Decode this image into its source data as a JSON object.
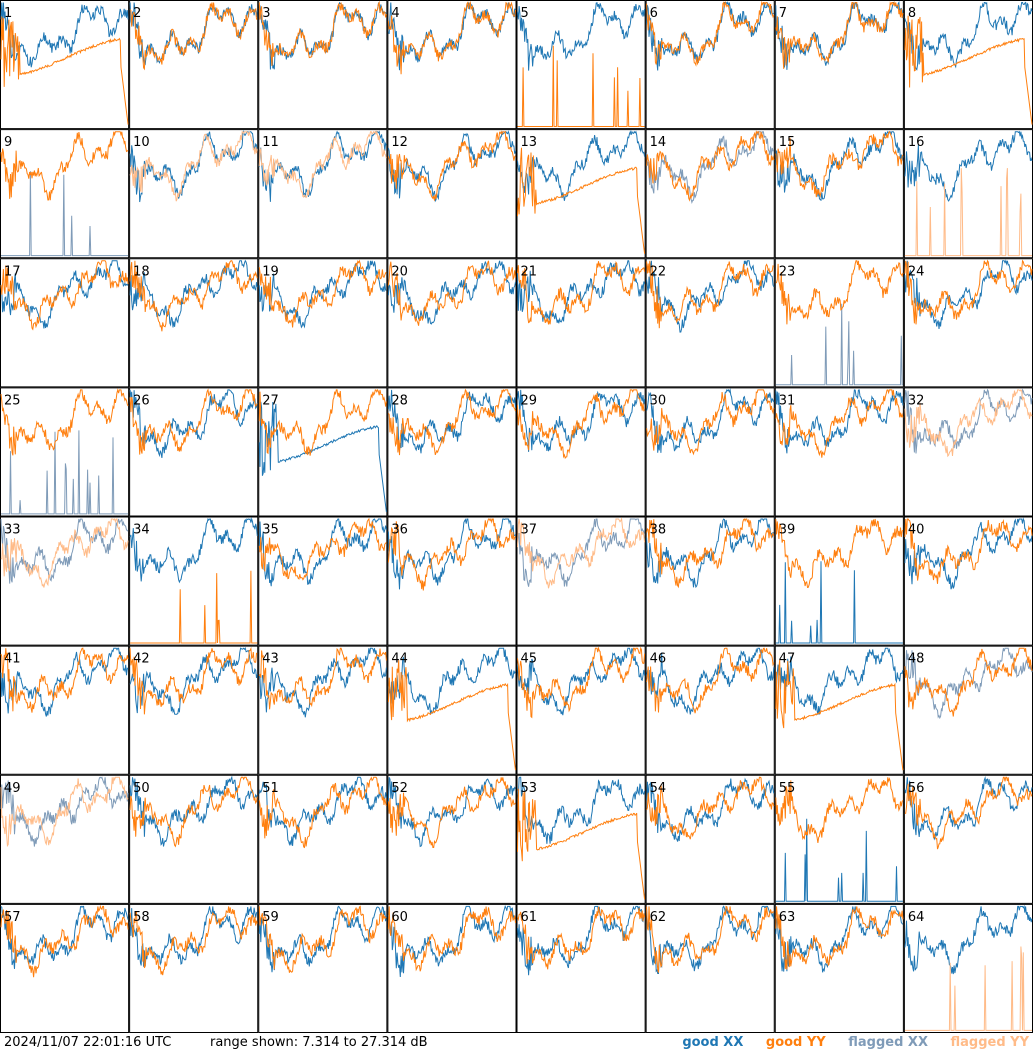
{
  "chart_data": {
    "type": "line",
    "panel_labels": [
      "1",
      "2",
      "3",
      "4",
      "5",
      "6",
      "7",
      "8",
      "9",
      "10",
      "11",
      "12",
      "13",
      "14",
      "15",
      "16",
      "17",
      "18",
      "19",
      "20",
      "21",
      "22",
      "23",
      "24",
      "25",
      "26",
      "27",
      "28",
      "29",
      "30",
      "31",
      "32",
      "33",
      "34",
      "35",
      "36",
      "37",
      "38",
      "39",
      "40",
      "41",
      "42",
      "43",
      "44",
      "45",
      "46",
      "47",
      "48",
      "49",
      "50",
      "51",
      "52",
      "53",
      "54",
      "55",
      "56",
      "57",
      "58",
      "59",
      "60",
      "61",
      "62",
      "63",
      "64"
    ],
    "grid": {
      "rows": 8,
      "cols": 8
    },
    "ylim_db": [
      7.314,
      27.314
    ],
    "series": [
      {
        "name": "good XX",
        "color": "#1f77b4"
      },
      {
        "name": "good YY",
        "color": "#ff7f0e"
      },
      {
        "name": "flagged XX",
        "color": "#7f9bb8"
      },
      {
        "name": "flagged YY",
        "color": "#ffbb88"
      }
    ],
    "panel_status": {
      "1": [
        "good",
        "good"
      ],
      "2": [
        "good",
        "good"
      ],
      "3": [
        "good",
        "good"
      ],
      "4": [
        "good",
        "good"
      ],
      "5": [
        "good",
        "good"
      ],
      "6": [
        "good",
        "good"
      ],
      "7": [
        "good",
        "good"
      ],
      "8": [
        "good",
        "good"
      ],
      "9": [
        "flagged",
        "good"
      ],
      "10": [
        "good",
        "flagged"
      ],
      "11": [
        "good",
        "flagged"
      ],
      "12": [
        "good",
        "good"
      ],
      "13": [
        "good",
        "good"
      ],
      "14": [
        "flagged",
        "good"
      ],
      "15": [
        "good",
        "good"
      ],
      "16": [
        "good",
        "flagged"
      ],
      "17": [
        "good",
        "good"
      ],
      "18": [
        "good",
        "good"
      ],
      "19": [
        "good",
        "good"
      ],
      "20": [
        "good",
        "good"
      ],
      "21": [
        "good",
        "good"
      ],
      "22": [
        "good",
        "good"
      ],
      "23": [
        "flagged",
        "good"
      ],
      "24": [
        "good",
        "good"
      ],
      "25": [
        "flagged",
        "good"
      ],
      "26": [
        "good",
        "good"
      ],
      "27": [
        "good",
        "good"
      ],
      "28": [
        "good",
        "good"
      ],
      "29": [
        "good",
        "good"
      ],
      "30": [
        "good",
        "good"
      ],
      "31": [
        "good",
        "good"
      ],
      "32": [
        "flagged",
        "flagged"
      ],
      "33": [
        "flagged",
        "flagged"
      ],
      "34": [
        "good",
        "good"
      ],
      "35": [
        "good",
        "good"
      ],
      "36": [
        "good",
        "good"
      ],
      "37": [
        "flagged",
        "flagged"
      ],
      "38": [
        "good",
        "good"
      ],
      "39": [
        "good",
        "good"
      ],
      "40": [
        "good",
        "good"
      ],
      "41": [
        "good",
        "good"
      ],
      "42": [
        "good",
        "good"
      ],
      "43": [
        "good",
        "good"
      ],
      "44": [
        "good",
        "good"
      ],
      "45": [
        "good",
        "good"
      ],
      "46": [
        "good",
        "good"
      ],
      "47": [
        "good",
        "good"
      ],
      "48": [
        "flagged",
        "good"
      ],
      "49": [
        "flagged",
        "flagged"
      ],
      "50": [
        "good",
        "good"
      ],
      "51": [
        "good",
        "good"
      ],
      "52": [
        "good",
        "good"
      ],
      "53": [
        "good",
        "good"
      ],
      "54": [
        "good",
        "good"
      ],
      "55": [
        "good",
        "good"
      ],
      "56": [
        "good",
        "good"
      ],
      "57": [
        "good",
        "good"
      ],
      "58": [
        "good",
        "good"
      ],
      "59": [
        "good",
        "good"
      ],
      "60": [
        "good",
        "good"
      ],
      "61": [
        "good",
        "good"
      ],
      "62": [
        "good",
        "good"
      ],
      "63": [
        "good",
        "good"
      ],
      "64": [
        "good",
        "flagged"
      ]
    },
    "special_panels": {
      "x_spiky_low": [
        "9",
        "23",
        "25",
        "39",
        "55"
      ],
      "y_spiky_low": [
        "5",
        "16",
        "34",
        "64"
      ],
      "y_decay_drop": [
        "1",
        "8",
        "13",
        "44",
        "47",
        "53"
      ],
      "x_decay_drop": [
        "27"
      ]
    }
  },
  "footer": {
    "timestamp": "2024/11/07 22:01:16 UTC",
    "range_text": "range shown: 7.314 to 27.314 dB",
    "legend": [
      "good XX",
      "good YY",
      "flagged XX",
      "flagged YY"
    ]
  }
}
